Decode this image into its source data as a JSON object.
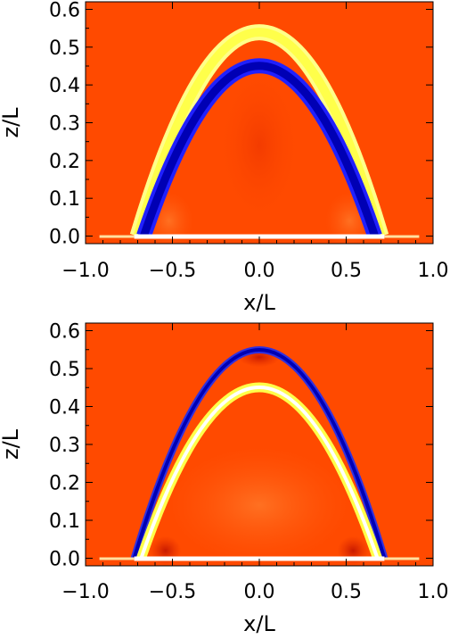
{
  "chart_data": [
    {
      "type": "heatmap",
      "title": "",
      "xlabel": "x/L",
      "ylabel": "z/L",
      "xlim": [
        -1.0,
        1.0
      ],
      "ylim": [
        -0.02,
        0.62
      ],
      "xticks": [
        "−1.0",
        "−0.5",
        "0.0",
        "0.5",
        "1.0"
      ],
      "yticks": [
        "0.0",
        "0.1",
        "0.2",
        "0.3",
        "0.4",
        "0.5",
        "0.6"
      ],
      "colormap": [
        "#0000b4",
        "#ff4a00",
        "#ffff4a",
        "#ffffff"
      ],
      "background_color": "#ff4a00",
      "features": [
        {
          "name": "outer-bright-band",
          "color": "#ffff4a",
          "apex_z": 0.56,
          "foot_x": 0.72
        },
        {
          "name": "inner-blue-band",
          "color": "#0000b4",
          "apex_z": 0.48,
          "foot_x": 0.68
        }
      ]
    },
    {
      "type": "heatmap",
      "title": "",
      "xlabel": "x/L",
      "ylabel": "z/L",
      "xlim": [
        -1.0,
        1.0
      ],
      "ylim": [
        -0.02,
        0.62
      ],
      "xticks": [
        "−1.0",
        "−0.5",
        "0.0",
        "0.5",
        "1.0"
      ],
      "yticks": [
        "0.0",
        "0.1",
        "0.2",
        "0.3",
        "0.4",
        "0.5",
        "0.6"
      ],
      "colormap": [
        "#0000b4",
        "#ff4a00",
        "#ffff4a",
        "#ffffff"
      ],
      "background_color": "#ff4a00",
      "features": [
        {
          "name": "outer-blue-band",
          "color": "#0000b4",
          "apex_z": 0.56,
          "foot_x": 0.72
        },
        {
          "name": "inner-bright-band",
          "color": "#ffff4a",
          "apex_z": 0.46,
          "foot_x": 0.68
        }
      ]
    }
  ]
}
